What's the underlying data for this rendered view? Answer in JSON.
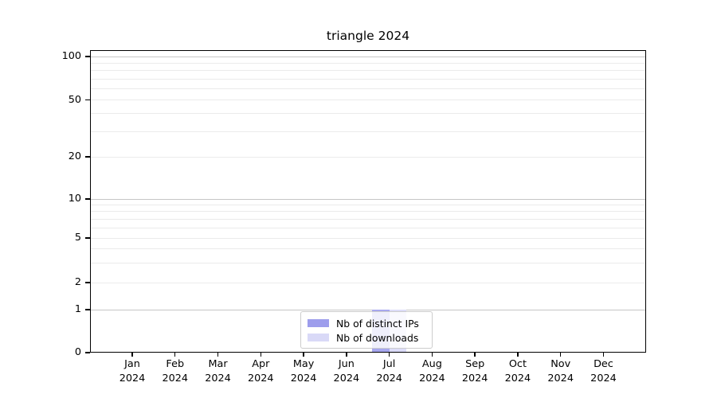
{
  "chart_data": {
    "type": "bar",
    "title": "triangle 2024",
    "categories": [
      "Jan",
      "Feb",
      "Mar",
      "Apr",
      "May",
      "Jun",
      "Jul",
      "Aug",
      "Sep",
      "Oct",
      "Nov",
      "Dec"
    ],
    "year_label": "2024",
    "series": [
      {
        "name": "Nb of distinct IPs",
        "color": "#9d9dec",
        "bar_color": "#a7a7ef",
        "values": [
          0,
          0,
          0,
          0,
          0,
          0,
          1,
          0,
          0,
          0,
          0,
          0
        ]
      },
      {
        "name": "Nb of downloads",
        "color": "#d9d9f7",
        "bar_color": "#dcdcf9",
        "values": [
          0,
          0,
          0,
          0,
          0,
          0,
          1,
          0,
          0,
          0,
          0,
          0
        ]
      }
    ],
    "y_ticks": [
      0,
      1,
      2,
      5,
      10,
      20,
      50,
      100
    ],
    "y_major_gridlines": [
      1,
      10,
      100
    ],
    "y_minor_gridlines": [
      2,
      3,
      4,
      5,
      6,
      7,
      8,
      9,
      20,
      30,
      40,
      50,
      60,
      70,
      80,
      90
    ],
    "ylim": [
      0,
      110
    ],
    "y_scale": "log-like above 1, linear 0-1",
    "xlabel": "",
    "ylabel": "",
    "grid": true,
    "legend_position": "lower center"
  }
}
